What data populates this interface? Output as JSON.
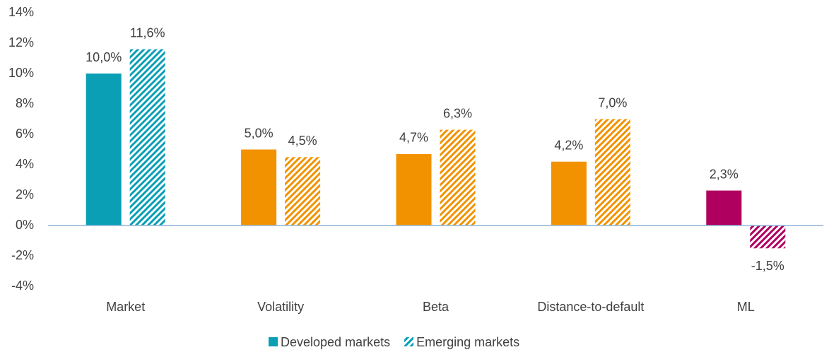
{
  "chart_data": {
    "type": "bar",
    "categories": [
      "Market",
      "Volatility",
      "Beta",
      "Distance-to-default",
      "ML"
    ],
    "colors": [
      "#0a9fb5",
      "#f39200",
      "#f39200",
      "#f39200",
      "#b0005f"
    ],
    "series": [
      {
        "name": "Developed markets",
        "color": "#0a9fb5",
        "pattern": "solid",
        "values": [
          10.0,
          5.0,
          4.7,
          4.2,
          2.3
        ],
        "value_labels": [
          "10,0%",
          "5,0%",
          "4,7%",
          "4,2%",
          "2,3%"
        ]
      },
      {
        "name": "Emerging markets",
        "color": "#0a9fb5",
        "pattern": "hatched",
        "values": [
          11.6,
          4.5,
          6.3,
          7.0,
          -1.5
        ],
        "value_labels": [
          "11,6%",
          "4,5%",
          "6,3%",
          "7,0%",
          "-1,5%"
        ]
      }
    ],
    "ylim": [
      -4,
      14
    ],
    "yticks": [
      {
        "value": -4,
        "label": "-4%"
      },
      {
        "value": -2,
        "label": "-2%"
      },
      {
        "value": 0,
        "label": "0%"
      },
      {
        "value": 2,
        "label": "2%"
      },
      {
        "value": 4,
        "label": "4%"
      },
      {
        "value": 6,
        "label": "6%"
      },
      {
        "value": 8,
        "label": "8%"
      },
      {
        "value": 10,
        "label": "10%"
      },
      {
        "value": 12,
        "label": "12%"
      },
      {
        "value": 14,
        "label": "14%"
      }
    ],
    "grid": false,
    "legend": "bottom"
  }
}
